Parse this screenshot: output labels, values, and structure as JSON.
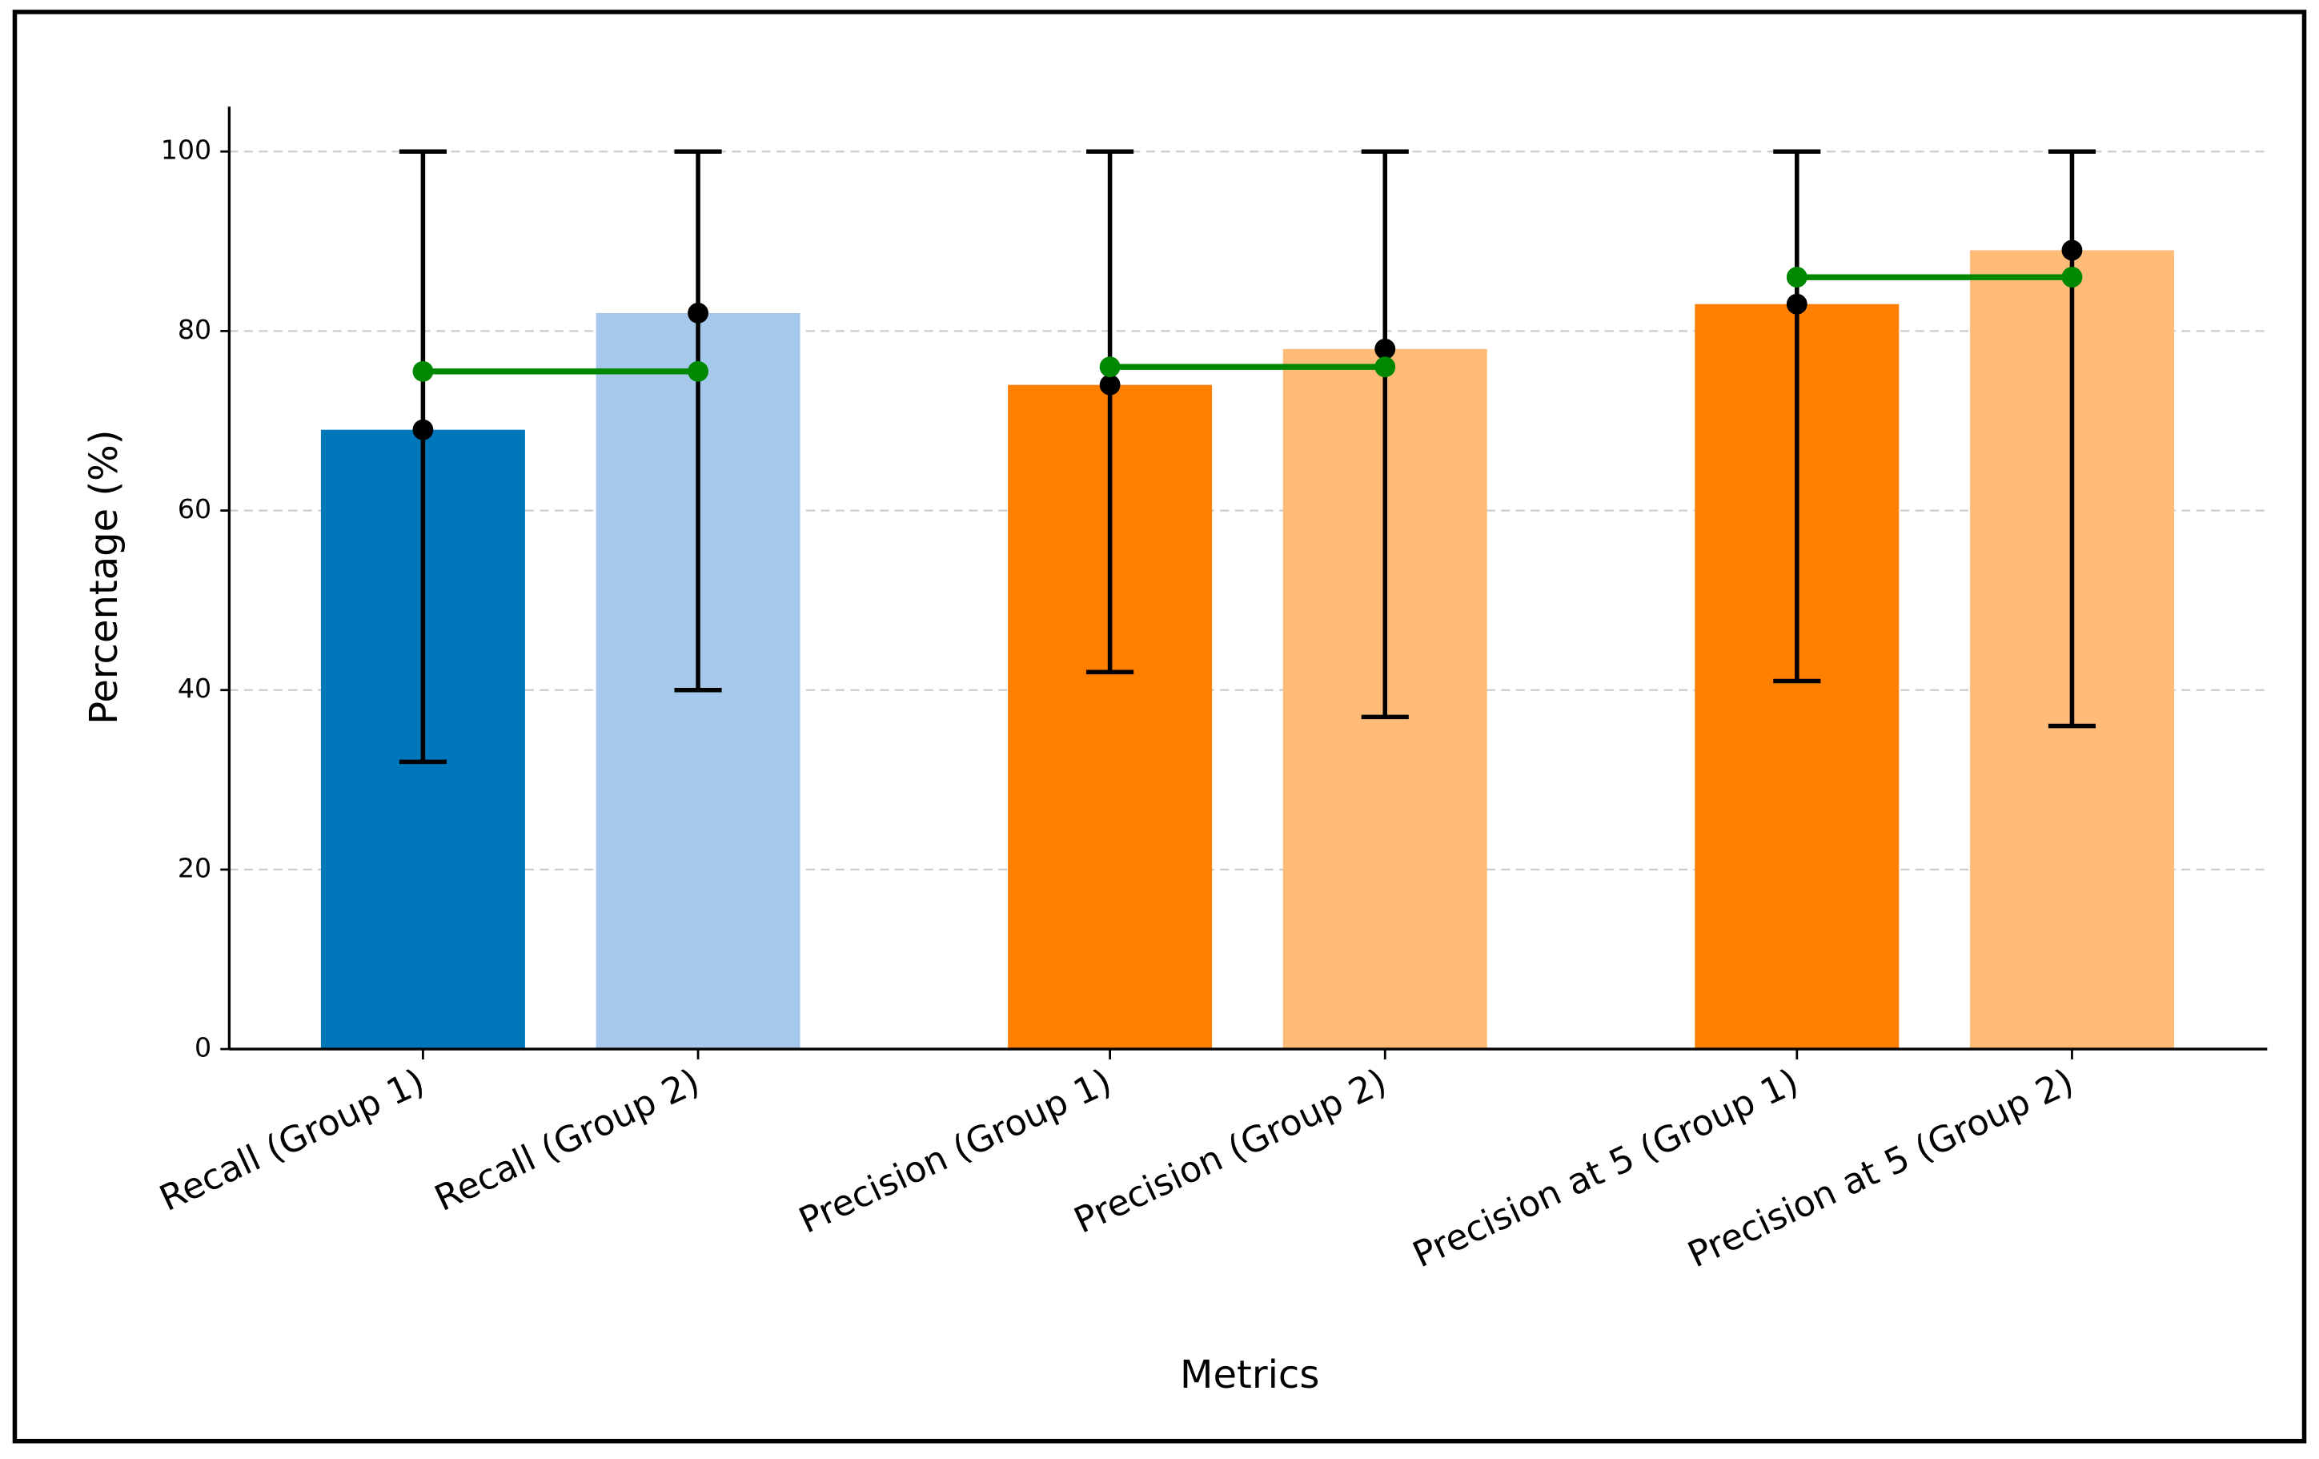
{
  "chart_data": {
    "type": "bar",
    "x_label": "Metrics",
    "y_label": "Percentage (%)",
    "categories": [
      "Recall (Group 1)",
      "Recall (Group 2)",
      "Precision (Group 1)",
      "Precision (Group 2)",
      "Precision at 5 (Group 1)",
      "Precision at 5 (Group 2)"
    ],
    "values": [
      69,
      82,
      74,
      78,
      83,
      89
    ],
    "lower": [
      32,
      40,
      42,
      37,
      41,
      36
    ],
    "upper": [
      100,
      100,
      100,
      100,
      100,
      100
    ],
    "colors": [
      "#0077bb",
      "#a6c8ea",
      "#ff7f00",
      "#ffbb78",
      "#ff7f00",
      "#ffbb78"
    ],
    "means": [
      75.5,
      76,
      86
    ],
    "mean_color": "#008800",
    "ylim": [
      0,
      105
    ],
    "yticks": [
      0,
      20,
      40,
      60,
      80,
      100
    ],
    "grid": true
  }
}
